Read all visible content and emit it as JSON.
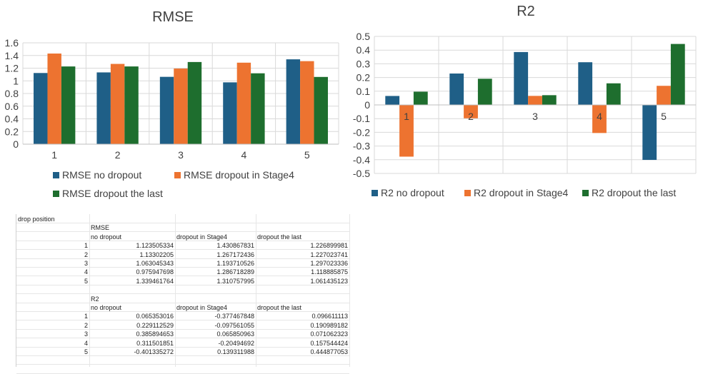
{
  "chart_data": [
    {
      "type": "bar",
      "title": "RMSE",
      "categories": [
        "1",
        "2",
        "3",
        "4",
        "5"
      ],
      "ylim": [
        0,
        1.6
      ],
      "yticks": [
        "0",
        "0.2",
        "0.4",
        "0.6",
        "0.8",
        "1",
        "1.2",
        "1.4",
        "1.6"
      ],
      "grid": true,
      "legend_position": "bottom",
      "series": [
        {
          "name": "RMSE no dropout",
          "color": "#1f5f87",
          "values": [
            1.123505334,
            1.13302205,
            1.063045343,
            0.975947698,
            1.339461764
          ]
        },
        {
          "name": "RMSE dropout in Stage4",
          "color": "#ed7330",
          "values": [
            1.430867831,
            1.267172436,
            1.193710526,
            1.286718289,
            1.310757995
          ]
        },
        {
          "name": "RMSE dropout the last",
          "color": "#1e6e2e",
          "values": [
            1.226899981,
            1.227023741,
            1.297023336,
            1.118885875,
            1.061435123
          ]
        }
      ]
    },
    {
      "type": "bar",
      "title": "R2",
      "categories": [
        "1",
        "2",
        "3",
        "4",
        "5"
      ],
      "ylim": [
        -0.5,
        0.5
      ],
      "yticks": [
        "-0.5",
        "-0.4",
        "-0.3",
        "-0.2",
        "-0.1",
        "0",
        "0.1",
        "0.2",
        "0.3",
        "0.4",
        "0.5"
      ],
      "grid": true,
      "legend_position": "bottom",
      "series": [
        {
          "name": "R2 no dropout",
          "color": "#1f5f87",
          "values": [
            0.065353016,
            0.229112529,
            0.385894653,
            0.311501851,
            -0.401335272
          ]
        },
        {
          "name": "R2 dropout in Stage4",
          "color": "#ed7330",
          "values": [
            -0.377467848,
            -0.097561055,
            0.065850963,
            -0.20494692,
            0.139311988
          ]
        },
        {
          "name": "R2 dropout the last",
          "color": "#1e6e2e",
          "values": [
            0.096611113,
            0.190989182,
            0.071062323,
            0.157544424,
            0.444877053
          ]
        }
      ]
    }
  ],
  "sheet": {
    "header": "drop position",
    "rmse": {
      "title": "RMSE",
      "cols": [
        "no dropout",
        "dropout in Stage4",
        "dropout the last"
      ],
      "rows": [
        [
          "1",
          "1.123505334",
          "1.430867831",
          "1.226899981"
        ],
        [
          "2",
          "1.13302205",
          "1.267172436",
          "1.227023741"
        ],
        [
          "3",
          "1.063045343",
          "1.193710526",
          "1.297023336"
        ],
        [
          "4",
          "0.975947698",
          "1.286718289",
          "1.118885875"
        ],
        [
          "5",
          "1.339461764",
          "1.310757995",
          "1.061435123"
        ]
      ]
    },
    "r2": {
      "title": "R2",
      "cols": [
        "no dropout",
        "dropout in Stage4",
        "dropout the last"
      ],
      "rows": [
        [
          "1",
          "0.065353016",
          "-0.377467848",
          "0.096611113"
        ],
        [
          "2",
          "0.229112529",
          "-0.097561055",
          "0.190989182"
        ],
        [
          "3",
          "0.385894653",
          "0.065850963",
          "0.071062323"
        ],
        [
          "4",
          "0.311501851",
          "-0.20494692",
          "0.157544424"
        ],
        [
          "5",
          "-0.401335272",
          "0.139311988",
          "0.444877053"
        ]
      ]
    }
  }
}
